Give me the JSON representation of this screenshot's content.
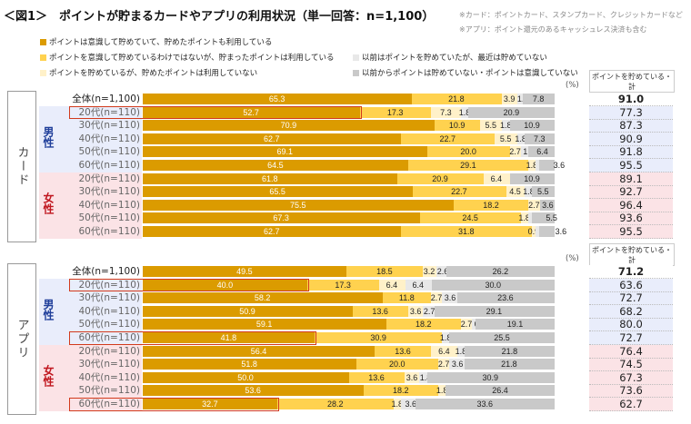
{
  "title": "＜図1＞　ポイントが貯まるカードやアプリの利用状況（単一回答：n=1,100）",
  "notes": [
    "※カード：ポイントカード、スタンプカード、クレジットカードなど",
    "※アプリ：ポイント還元のあるキャッシュレス決済も含む"
  ],
  "unit": "(%)",
  "total_header": "ポイントを貯めている・計",
  "sections": [
    "カード",
    "アプリ"
  ],
  "genders": [
    {
      "label": "男性",
      "color": "#1F3E9A"
    },
    {
      "label": "女性",
      "color": "#C0171F"
    }
  ],
  "colors": {
    "male_bg": "#E9EDFB",
    "female_bg": "#FBE3E6",
    "highlight": "#D23A1C"
  },
  "chart_data": {
    "type": "stacked-bar-horizontal",
    "xlim": [
      0,
      100
    ],
    "series": [
      {
        "name": "ポイントは意識して貯めていて、貯めたポイントも利用している",
        "color": "#DB9B00"
      },
      {
        "name": "ポイントを意識して貯めているわけではないが、貯まったポイントは利用している",
        "color": "#FFD24F"
      },
      {
        "name": "ポイントを貯めているが、貯めたポイントは利用していない",
        "color": "#FFF1C9"
      },
      {
        "name": "以前はポイントを貯めていたが、最近は貯めていない",
        "color": "#E8E8E8"
      },
      {
        "name": "以前からポイントは貯めていない・ポイントは意識していない",
        "color": "#C9C9C9"
      }
    ],
    "panels": [
      {
        "section": "カード",
        "rows": [
          {
            "label": "全体(n=1,100)",
            "values": [
              65.3,
              21.8,
              3.9,
              1.2,
              7.8
            ],
            "total": "91.0"
          },
          {
            "label": "20代(n=110)",
            "gender": 0,
            "highlight": true,
            "values": [
              52.7,
              17.3,
              7.3,
              1.8,
              20.9
            ],
            "total": "77.3"
          },
          {
            "label": "30代(n=110)",
            "gender": 0,
            "values": [
              70.9,
              10.9,
              5.5,
              1.8,
              10.9
            ],
            "total": "87.3"
          },
          {
            "label": "40代(n=110)",
            "gender": 0,
            "values": [
              62.7,
              22.7,
              5.5,
              1.8,
              7.3
            ],
            "total": "90.9"
          },
          {
            "label": "50代(n=110)",
            "gender": 0,
            "values": [
              69.1,
              20.0,
              2.7,
              1.8,
              6.4
            ],
            "total": "91.8"
          },
          {
            "label": "60代(n=110)",
            "gender": 0,
            "values": [
              64.5,
              29.1,
              1.8,
              0.9,
              3.6
            ],
            "total": "95.5"
          },
          {
            "label": "20代(n=110)",
            "gender": 1,
            "values": [
              61.8,
              20.9,
              6.4,
              0,
              10.9
            ],
            "total": "89.1"
          },
          {
            "label": "30代(n=110)",
            "gender": 1,
            "values": [
              65.5,
              22.7,
              4.5,
              1.8,
              5.5
            ],
            "total": "92.7"
          },
          {
            "label": "40代(n=110)",
            "gender": 1,
            "values": [
              75.5,
              18.2,
              2.7,
              0.0,
              3.6
            ],
            "total": "96.4"
          },
          {
            "label": "50代(n=110)",
            "gender": 1,
            "values": [
              67.3,
              24.5,
              1.8,
              0.9,
              5.5
            ],
            "total": "93.6"
          },
          {
            "label": "60代(n=110)",
            "gender": 1,
            "values": [
              62.7,
              31.8,
              0.9,
              0.9,
              3.6
            ],
            "total": "95.5"
          }
        ]
      },
      {
        "section": "アプリ",
        "rows": [
          {
            "label": "全体(n=1,100)",
            "values": [
              49.5,
              18.5,
              3.2,
              2.6,
              26.2
            ],
            "total": "71.2"
          },
          {
            "label": "20代(n=110)",
            "gender": 0,
            "highlight": true,
            "values": [
              40.0,
              17.3,
              6.4,
              6.4,
              30.0
            ],
            "total": "63.6"
          },
          {
            "label": "30代(n=110)",
            "gender": 0,
            "values": [
              58.2,
              11.8,
              2.7,
              3.6,
              23.6
            ],
            "total": "72.7"
          },
          {
            "label": "40代(n=110)",
            "gender": 0,
            "values": [
              50.9,
              13.6,
              3.6,
              2.7,
              29.1
            ],
            "total": "68.2"
          },
          {
            "label": "50代(n=110)",
            "gender": 0,
            "values": [
              59.1,
              18.2,
              2.7,
              0.9,
              19.1
            ],
            "total": "80.0"
          },
          {
            "label": "60代(n=110)",
            "gender": 0,
            "highlight": true,
            "values": [
              41.8,
              30.9,
              0,
              1.8,
              25.5
            ],
            "total": "72.7"
          },
          {
            "label": "20代(n=110)",
            "gender": 1,
            "values": [
              56.4,
              13.6,
              6.4,
              1.8,
              21.8
            ],
            "total": "76.4"
          },
          {
            "label": "30代(n=110)",
            "gender": 1,
            "values": [
              51.8,
              20.0,
              2.7,
              3.6,
              21.8
            ],
            "total": "74.5"
          },
          {
            "label": "40代(n=110)",
            "gender": 1,
            "values": [
              50.0,
              13.6,
              3.6,
              1.8,
              30.9
            ],
            "total": "67.3"
          },
          {
            "label": "50代(n=110)",
            "gender": 1,
            "values": [
              53.6,
              18.2,
              1.8,
              0,
              26.4
            ],
            "total": "73.6"
          },
          {
            "label": "60代(n=110)",
            "gender": 1,
            "highlight": true,
            "values": [
              32.7,
              28.2,
              1.8,
              3.6,
              33.6
            ],
            "total": "62.7"
          }
        ]
      }
    ]
  }
}
